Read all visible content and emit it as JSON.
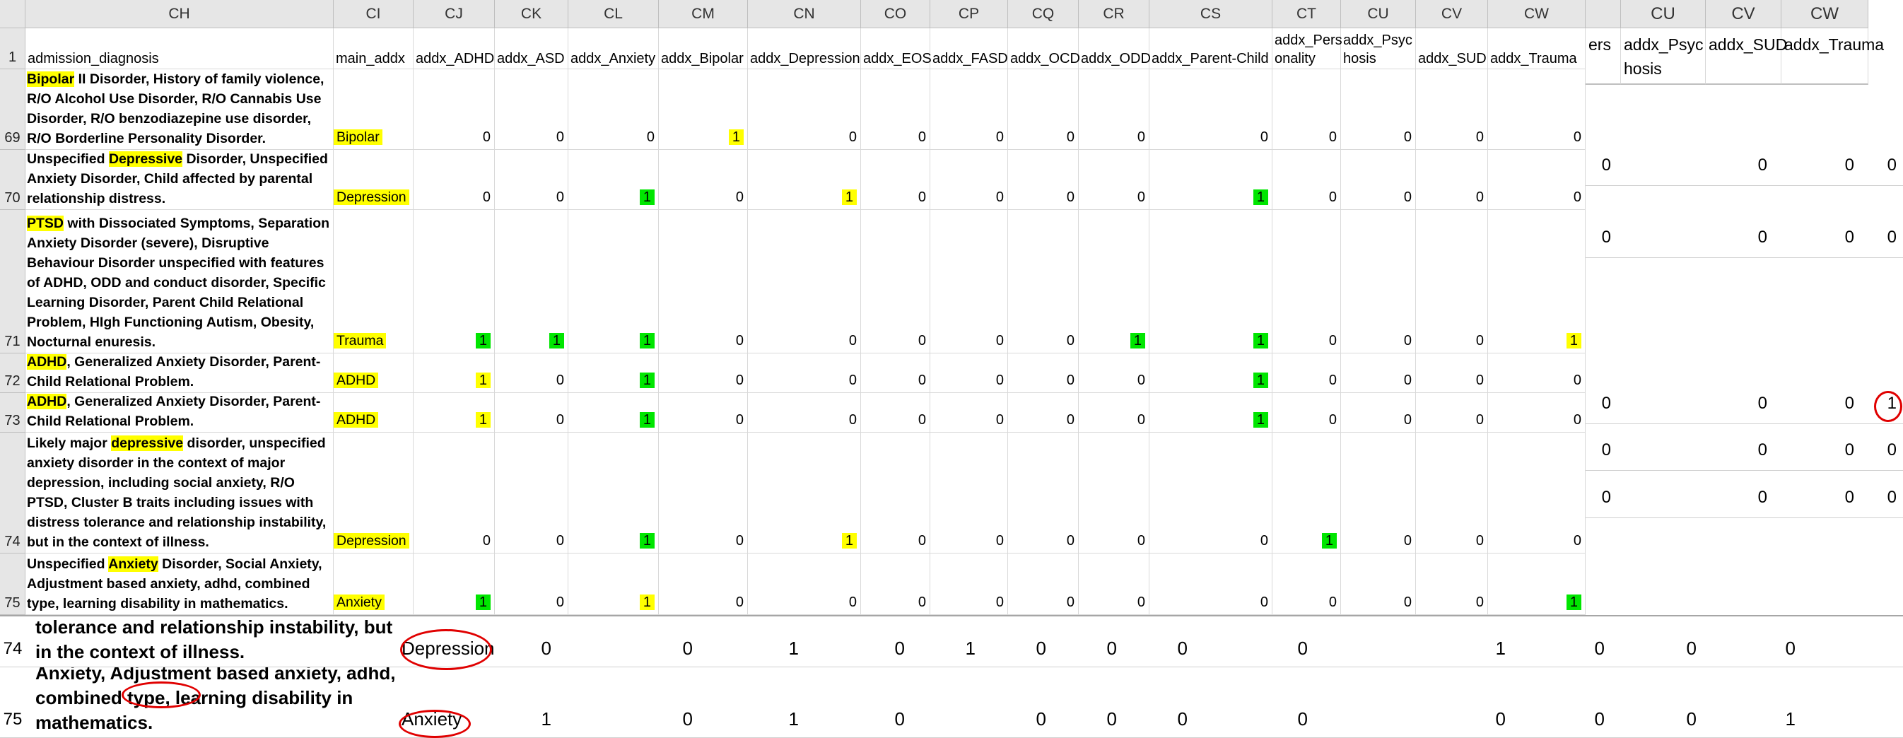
{
  "columns": [
    {
      "letter": "CH",
      "field": "admission_diagnosis"
    },
    {
      "letter": "CI",
      "field": "main_addx"
    },
    {
      "letter": "CJ",
      "field": "addx_ADHD"
    },
    {
      "letter": "CK",
      "field": "addx_ASD"
    },
    {
      "letter": "CL",
      "field": "addx_Anxiety"
    },
    {
      "letter": "CM",
      "field": "addx_Bipolar"
    },
    {
      "letter": "CN",
      "field": "addx_Depression"
    },
    {
      "letter": "CO",
      "field": "addx_EOS"
    },
    {
      "letter": "CP",
      "field": "addx_FASD"
    },
    {
      "letter": "CQ",
      "field": "addx_OCD"
    },
    {
      "letter": "CR",
      "field": "addx_ODD"
    },
    {
      "letter": "CS",
      "field": "addx_Parent-Child"
    },
    {
      "letter": "CT",
      "field": "addx_Pers\nonality"
    },
    {
      "letter": "CU",
      "field": "addx_Psyc\nhosis"
    },
    {
      "letter": "CV",
      "field": "addx_SUD"
    },
    {
      "letter": "CW",
      "field": "addx_Trauma"
    }
  ],
  "header_row_number": "1",
  "rows": [
    {
      "row": "69",
      "main": "Bipolar",
      "diag": [
        {
          "t": "Bipolar",
          "h": true
        },
        {
          "t": " II Disorder, History of family violence, R/O Alcohol Use Disorder, R/O Cannabis Use Disorder, R/O benzodiazepine use disorder, R/O Borderline Personality Disorder."
        }
      ],
      "vals": [
        0,
        0,
        0,
        1,
        0,
        0,
        0,
        0,
        0,
        0,
        0,
        0,
        0,
        0
      ],
      "marks": [
        "",
        "",
        "",
        "y",
        "",
        "",
        "",
        "",
        "",
        "",
        "",
        "",
        "",
        ""
      ]
    },
    {
      "row": "70",
      "main": "Depression",
      "diag": [
        {
          "t": "Unspecified "
        },
        {
          "t": "Depressive",
          "h": true
        },
        {
          "t": " Disorder, Unspecified Anxiety Disorder, Child affected by parental relationship distress."
        }
      ],
      "vals": [
        0,
        0,
        1,
        0,
        1,
        0,
        0,
        0,
        0,
        1,
        0,
        0,
        0,
        0
      ],
      "marks": [
        "",
        "",
        "g",
        "",
        "y",
        "",
        "",
        "",
        "",
        "g",
        "",
        "",
        "",
        ""
      ]
    },
    {
      "row": "71",
      "main": "Trauma",
      "diag": [
        {
          "t": "PTSD",
          "h": true
        },
        {
          "t": " with Dissociated Symptoms, Separation Anxiety Disorder (severe), Disruptive Behaviour Disorder unspecified with features of ADHD, ODD and conduct disorder, Specific Learning Disorder, Parent Child Relational Problem, HIgh Functioning Autism, Obesity, Nocturnal enuresis."
        }
      ],
      "vals": [
        1,
        1,
        1,
        0,
        0,
        0,
        0,
        0,
        1,
        1,
        0,
        0,
        0,
        1
      ],
      "marks": [
        "g",
        "g",
        "g",
        "",
        "",
        "",
        "",
        "",
        "g",
        "g",
        "",
        "",
        "",
        "y"
      ]
    },
    {
      "row": "72",
      "main": "ADHD",
      "diag": [
        {
          "t": "ADHD",
          "h": true
        },
        {
          "t": ", Generalized Anxiety Disorder, Parent-Child Relational Problem."
        }
      ],
      "vals": [
        1,
        0,
        1,
        0,
        0,
        0,
        0,
        0,
        0,
        1,
        0,
        0,
        0,
        0
      ],
      "marks": [
        "y",
        "",
        "g",
        "",
        "",
        "",
        "",
        "",
        "",
        "g",
        "",
        "",
        "",
        ""
      ]
    },
    {
      "row": "73",
      "main": "ADHD",
      "diag": [
        {
          "t": "ADHD",
          "h": true
        },
        {
          "t": ", Generalized Anxiety Disorder, Parent-Child Relational Problem."
        }
      ],
      "vals": [
        1,
        0,
        1,
        0,
        0,
        0,
        0,
        0,
        0,
        1,
        0,
        0,
        0,
        0
      ],
      "marks": [
        "y",
        "",
        "g",
        "",
        "",
        "",
        "",
        "",
        "",
        "g",
        "",
        "",
        "",
        ""
      ]
    },
    {
      "row": "74",
      "main": "Depression",
      "diag": [
        {
          "t": "Likely major "
        },
        {
          "t": "depressive",
          "h": true
        },
        {
          "t": " disorder, unspecified anxiety disorder in the context of major depression, including social anxiety, R/O PTSD, Cluster B traits including issues with distress tolerance and relationship instability, but in the context of illness."
        }
      ],
      "vals": [
        0,
        0,
        1,
        0,
        1,
        0,
        0,
        0,
        0,
        0,
        1,
        0,
        0,
        0
      ],
      "marks": [
        "",
        "",
        "g",
        "",
        "y",
        "",
        "",
        "",
        "",
        "",
        "g",
        "",
        "",
        ""
      ]
    },
    {
      "row": "75",
      "main": "Anxiety",
      "diag": [
        {
          "t": "Unspecified "
        },
        {
          "t": "Anxiety",
          "h": true
        },
        {
          "t": " Disorder, Social Anxiety, Adjustment based anxiety, adhd, combined type, learning disability in mathematics."
        }
      ],
      "vals": [
        1,
        0,
        1,
        0,
        0,
        0,
        0,
        0,
        0,
        0,
        0,
        0,
        0,
        1
      ],
      "marks": [
        "g",
        "",
        "y",
        "",
        "",
        "",
        "",
        "",
        "",
        "",
        "",
        "",
        "",
        "g"
      ]
    }
  ],
  "right_panel": {
    "header_tail": "ers",
    "columns": [
      {
        "letter": "CU",
        "field": "addx_Psyc\nhosis"
      },
      {
        "letter": "CV",
        "field": "addx_SUD"
      },
      {
        "letter": "CW",
        "field": "addx_Trauma"
      }
    ],
    "rows": [
      {
        "vals": [
          "0",
          "0",
          "0",
          "0"
        ]
      },
      {
        "vals": [
          "0",
          "0",
          "0",
          "0"
        ]
      },
      {
        "vals": [
          "0",
          "0",
          "0",
          "1"
        ]
      },
      {
        "vals": [
          "0",
          "0",
          "0",
          "0"
        ]
      },
      {
        "vals": [
          "0",
          "0",
          "0",
          "0"
        ]
      }
    ]
  },
  "bottom_strip": {
    "rows": [
      {
        "row": "74",
        "diag": "tolerance and relationship instability, but in the context of illness.",
        "main": "Depression",
        "vals": [
          "0",
          "0",
          "1",
          "0",
          "1",
          "0",
          "0",
          "0",
          "0",
          "",
          "1",
          "0",
          "0",
          "0"
        ]
      },
      {
        "row": "75",
        "diag": "Unspecified Anxiety Disorder, Social Anxiety, Adjustment based anxiety, adhd, combined type, learning disability in mathematics.",
        "main": "Anxiety",
        "vals": [
          "1",
          "0",
          "1",
          "0",
          "",
          "0",
          "0",
          "0",
          "0",
          "",
          "0",
          "0",
          "0",
          "1"
        ]
      }
    ]
  },
  "colors": {
    "green": "#00e600",
    "yellow": "#ffff00",
    "circle": "#e00000",
    "header_bg": "#e6e6e6"
  }
}
